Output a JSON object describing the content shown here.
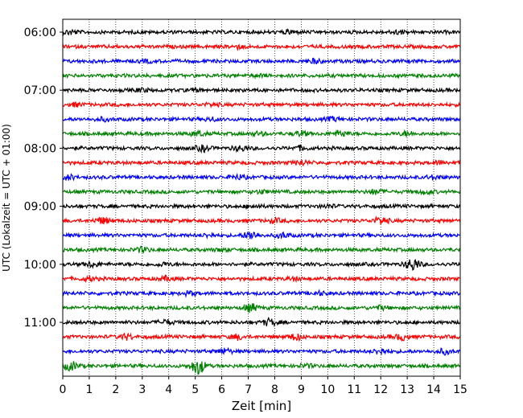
{
  "chart_data": {
    "type": "line",
    "subtype": "seismic-helicorder",
    "title": "",
    "xlabel": "Zeit  [min]",
    "ylabel": "UTC (Lokalzeit = UTC + 01:00)",
    "xlim": [
      0,
      15
    ],
    "xticks": [
      "0",
      "1",
      "2",
      "3",
      "4",
      "5",
      "6",
      "7",
      "8",
      "9",
      "10",
      "11",
      "12",
      "13",
      "14",
      "15"
    ],
    "ytick_labels": [
      "06:00",
      "07:00",
      "08:00",
      "09:00",
      "10:00",
      "11:00"
    ],
    "trace_colors": [
      "#000000",
      "#ff0000",
      "#0000ff",
      "#008000"
    ],
    "grid": "vertical dotted at each minute",
    "rows": [
      {
        "start": "06:00",
        "events": [
          {
            "t": 0.3,
            "a": 2.2
          },
          {
            "t": 8.6,
            "a": 2.0
          },
          {
            "t": 12.6,
            "a": 1.8
          }
        ]
      },
      {
        "start": "06:15",
        "events": [
          {
            "t": 6.6,
            "a": 1.6
          }
        ]
      },
      {
        "start": "06:30",
        "events": [
          {
            "t": 9.5,
            "a": 2.0
          },
          {
            "t": 3.2,
            "a": 1.2
          }
        ]
      },
      {
        "start": "06:45",
        "events": [
          {
            "t": 7.4,
            "a": 1.2
          }
        ]
      },
      {
        "start": "07:00",
        "events": [
          {
            "t": 3.0,
            "a": 1.4
          },
          {
            "t": 5.0,
            "a": 1.2
          }
        ]
      },
      {
        "start": "07:15",
        "events": [
          {
            "t": 0.5,
            "a": 1.6
          },
          {
            "t": 5.6,
            "a": 1.4
          }
        ]
      },
      {
        "start": "07:30",
        "events": [
          {
            "t": 1.5,
            "a": 1.6
          },
          {
            "t": 5.6,
            "a": 1.5
          },
          {
            "t": 10.2,
            "a": 1.8
          }
        ]
      },
      {
        "start": "07:45",
        "events": [
          {
            "t": 5.1,
            "a": 2.6
          },
          {
            "t": 7.4,
            "a": 1.6
          },
          {
            "t": 9.0,
            "a": 2.4
          },
          {
            "t": 10.5,
            "a": 2.8
          },
          {
            "t": 13.0,
            "a": 2.0
          }
        ]
      },
      {
        "start": "08:00",
        "events": [
          {
            "t": 5.3,
            "a": 3.0
          },
          {
            "t": 6.7,
            "a": 2.6
          },
          {
            "t": 9.0,
            "a": 2.2
          }
        ]
      },
      {
        "start": "08:15",
        "events": [
          {
            "t": 9.0,
            "a": 2.6
          },
          {
            "t": 14.2,
            "a": 1.8
          }
        ]
      },
      {
        "start": "08:30",
        "events": [
          {
            "t": 0.2,
            "a": 2.8
          },
          {
            "t": 6.6,
            "a": 2.2
          },
          {
            "t": 14.0,
            "a": 1.8
          }
        ]
      },
      {
        "start": "08:45",
        "events": [
          {
            "t": 7.5,
            "a": 1.6
          },
          {
            "t": 11.8,
            "a": 2.4
          },
          {
            "t": 13.7,
            "a": 2.0
          }
        ]
      },
      {
        "start": "09:00",
        "events": [
          {
            "t": 7.2,
            "a": 1.6
          },
          {
            "t": 10.0,
            "a": 1.4
          }
        ]
      },
      {
        "start": "09:15",
        "events": [
          {
            "t": 1.5,
            "a": 3.4
          },
          {
            "t": 8.0,
            "a": 2.0
          },
          {
            "t": 12.0,
            "a": 4.0
          }
        ]
      },
      {
        "start": "09:30",
        "events": [
          {
            "t": 5.5,
            "a": 1.6
          },
          {
            "t": 7.1,
            "a": 4.6
          },
          {
            "t": 8.3,
            "a": 2.6
          }
        ]
      },
      {
        "start": "09:45",
        "events": [
          {
            "t": 3.0,
            "a": 2.6
          },
          {
            "t": 6.0,
            "a": 1.2
          }
        ]
      },
      {
        "start": "10:00",
        "events": [
          {
            "t": 1.1,
            "a": 2.6
          },
          {
            "t": 3.8,
            "a": 1.6
          },
          {
            "t": 13.2,
            "a": 7.0
          }
        ]
      },
      {
        "start": "10:15",
        "events": [
          {
            "t": 1.0,
            "a": 2.0
          },
          {
            "t": 3.9,
            "a": 2.2
          },
          {
            "t": 8.7,
            "a": 1.6
          }
        ]
      },
      {
        "start": "10:30",
        "events": [
          {
            "t": 4.8,
            "a": 2.0
          },
          {
            "t": 9.7,
            "a": 1.6
          }
        ]
      },
      {
        "start": "10:45",
        "events": [
          {
            "t": 7.1,
            "a": 4.2
          },
          {
            "t": 12.0,
            "a": 1.8
          }
        ]
      },
      {
        "start": "11:00",
        "events": [
          {
            "t": 3.9,
            "a": 2.4
          },
          {
            "t": 7.8,
            "a": 3.6
          }
        ]
      },
      {
        "start": "11:15",
        "events": [
          {
            "t": 2.4,
            "a": 3.0
          },
          {
            "t": 6.6,
            "a": 2.6
          },
          {
            "t": 8.8,
            "a": 3.4
          },
          {
            "t": 12.8,
            "a": 3.2
          }
        ]
      },
      {
        "start": "11:30",
        "events": [
          {
            "t": 6.1,
            "a": 2.8
          },
          {
            "t": 12.0,
            "a": 3.2
          },
          {
            "t": 14.4,
            "a": 2.6
          }
        ]
      },
      {
        "start": "11:45",
        "events": [
          {
            "t": 0.3,
            "a": 4.6
          },
          {
            "t": 5.1,
            "a": 9.0
          },
          {
            "t": 9.2,
            "a": 1.6
          }
        ]
      }
    ]
  }
}
